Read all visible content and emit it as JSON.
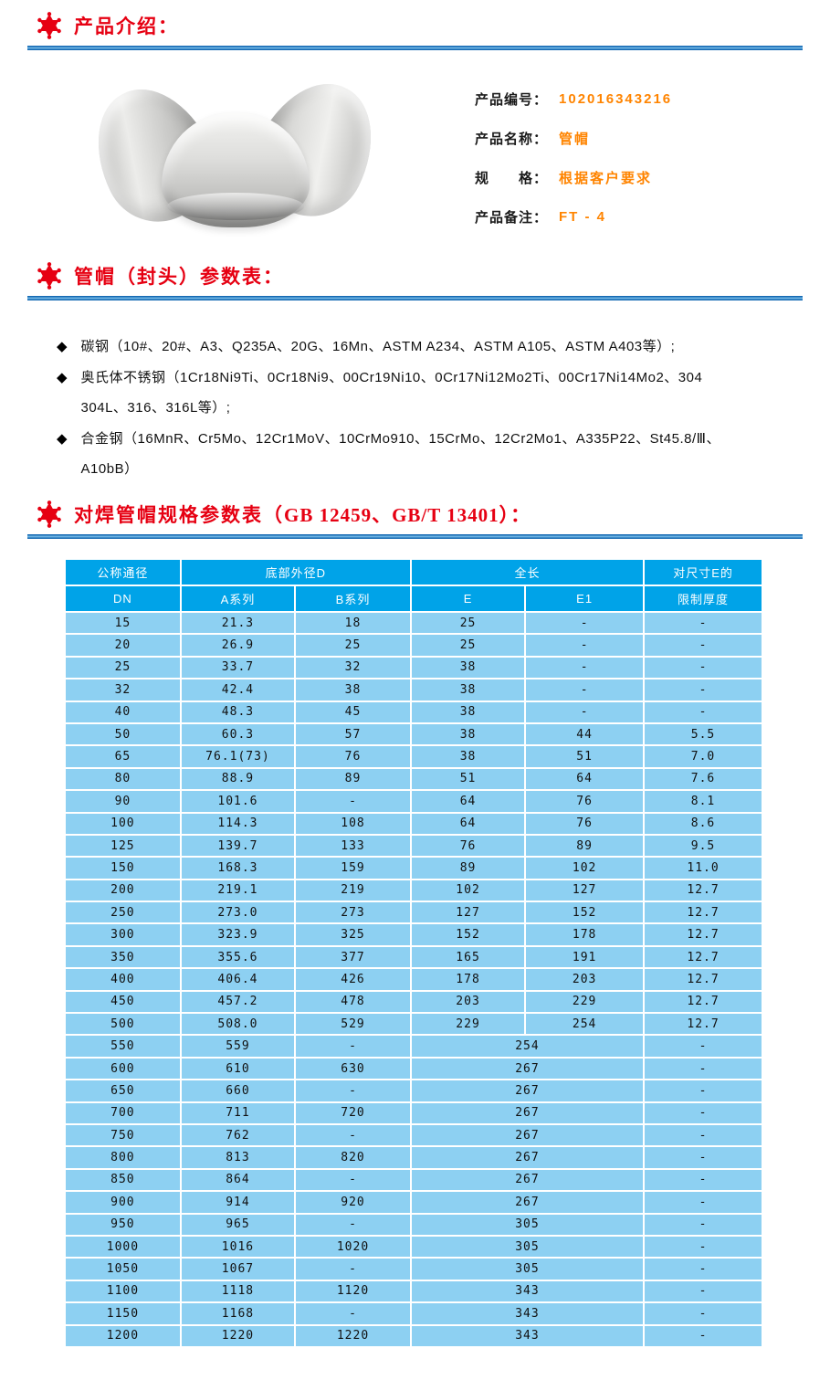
{
  "colors": {
    "accent_red": "#e60012",
    "value_orange": "#ff8400",
    "rule_blue": "#1569b3",
    "table_header_blue": "#00a3e8",
    "table_row_blue": "#8dd0f2"
  },
  "sections": {
    "intro_title": "产品介绍：",
    "params_title": "管帽（封头）参数表：",
    "spec_title_prefix": "对焊管帽规格参数表（",
    "spec_title_standards": "GB 12459、GB/T 13401",
    "spec_title_suffix": "）："
  },
  "product": {
    "image_name": "三个不锈钢管帽实物图",
    "fields": [
      {
        "label": "产品编号：",
        "value": "102016343216"
      },
      {
        "label": "产品名称：",
        "value": "管帽"
      },
      {
        "label": "规　　格：",
        "value": "根据客户要求"
      },
      {
        "label": "产品备注：",
        "value": "FT - 4"
      }
    ]
  },
  "materials": {
    "bullet_glyph": "◆",
    "items": [
      {
        "lines": [
          "碳钢（10#、20#、A3、Q235A、20G、16Mn、ASTM A234、ASTM A105、ASTM A403等）;"
        ]
      },
      {
        "lines": [
          "奥氏体不锈钢（1Cr18Ni9Ti、0Cr18Ni9、00Cr19Ni10、0Cr17Ni12Mo2Ti、00Cr17Ni14Mo2、304",
          "304L、316、316L等）;"
        ]
      },
      {
        "lines": [
          "合金钢（16MnR、Cr5Mo、12Cr1MoV、10CrMo910、15CrMo、12Cr2Mo1、A335P22、St45.8/Ⅲ、",
          "A10bB）"
        ]
      }
    ]
  },
  "spec_table": {
    "header": {
      "dn_top": "公称通径",
      "dn_bottom": "DN",
      "outer_diameter_group": "底部外径D",
      "series_a": "A系列",
      "series_b": "B系列",
      "length_group": "全长",
      "e": "E",
      "e1": "E1",
      "limit_top": "对尺寸E的",
      "limit_bottom": "限制厚度"
    },
    "rows": [
      {
        "dn": "15",
        "a": "21.3",
        "b": "18",
        "e": "25",
        "e1": "-",
        "t": "-"
      },
      {
        "dn": "20",
        "a": "26.9",
        "b": "25",
        "e": "25",
        "e1": "-",
        "t": "-"
      },
      {
        "dn": "25",
        "a": "33.7",
        "b": "32",
        "e": "38",
        "e1": "-",
        "t": "-"
      },
      {
        "dn": "32",
        "a": "42.4",
        "b": "38",
        "e": "38",
        "e1": "-",
        "t": "-"
      },
      {
        "dn": "40",
        "a": "48.3",
        "b": "45",
        "e": "38",
        "e1": "-",
        "t": "-"
      },
      {
        "dn": "50",
        "a": "60.3",
        "b": "57",
        "e": "38",
        "e1": "44",
        "t": "5.5"
      },
      {
        "dn": "65",
        "a": "76.1(73)",
        "b": "76",
        "e": "38",
        "e1": "51",
        "t": "7.0"
      },
      {
        "dn": "80",
        "a": "88.9",
        "b": "89",
        "e": "51",
        "e1": "64",
        "t": "7.6"
      },
      {
        "dn": "90",
        "a": "101.6",
        "b": "-",
        "e": "64",
        "e1": "76",
        "t": "8.1"
      },
      {
        "dn": "100",
        "a": "114.3",
        "b": "108",
        "e": "64",
        "e1": "76",
        "t": "8.6"
      },
      {
        "dn": "125",
        "a": "139.7",
        "b": "133",
        "e": "76",
        "e1": "89",
        "t": "9.5"
      },
      {
        "dn": "150",
        "a": "168.3",
        "b": "159",
        "e": "89",
        "e1": "102",
        "t": "11.0"
      },
      {
        "dn": "200",
        "a": "219.1",
        "b": "219",
        "e": "102",
        "e1": "127",
        "t": "12.7"
      },
      {
        "dn": "250",
        "a": "273.0",
        "b": "273",
        "e": "127",
        "e1": "152",
        "t": "12.7"
      },
      {
        "dn": "300",
        "a": "323.9",
        "b": "325",
        "e": "152",
        "e1": "178",
        "t": "12.7"
      },
      {
        "dn": "350",
        "a": "355.6",
        "b": "377",
        "e": "165",
        "e1": "191",
        "t": "12.7"
      },
      {
        "dn": "400",
        "a": "406.4",
        "b": "426",
        "e": "178",
        "e1": "203",
        "t": "12.7"
      },
      {
        "dn": "450",
        "a": "457.2",
        "b": "478",
        "e": "203",
        "e1": "229",
        "t": "12.7"
      },
      {
        "dn": "500",
        "a": "508.0",
        "b": "529",
        "e": "229",
        "e1": "254",
        "t": "12.7"
      },
      {
        "dn": "550",
        "a": "559",
        "b": "-",
        "e_merged": "254",
        "t": "-"
      },
      {
        "dn": "600",
        "a": "610",
        "b": "630",
        "e_merged": "267",
        "t": "-"
      },
      {
        "dn": "650",
        "a": "660",
        "b": "-",
        "e_merged": "267",
        "t": "-"
      },
      {
        "dn": "700",
        "a": "711",
        "b": "720",
        "e_merged": "267",
        "t": "-"
      },
      {
        "dn": "750",
        "a": "762",
        "b": "-",
        "e_merged": "267",
        "t": "-"
      },
      {
        "dn": "800",
        "a": "813",
        "b": "820",
        "e_merged": "267",
        "t": "-"
      },
      {
        "dn": "850",
        "a": "864",
        "b": "-",
        "e_merged": "267",
        "t": "-"
      },
      {
        "dn": "900",
        "a": "914",
        "b": "920",
        "e_merged": "267",
        "t": "-"
      },
      {
        "dn": "950",
        "a": "965",
        "b": "-",
        "e_merged": "305",
        "t": "-"
      },
      {
        "dn": "1000",
        "a": "1016",
        "b": "1020",
        "e_merged": "305",
        "t": "-"
      },
      {
        "dn": "1050",
        "a": "1067",
        "b": "-",
        "e_merged": "305",
        "t": "-"
      },
      {
        "dn": "1100",
        "a": "1118",
        "b": "1120",
        "e_merged": "343",
        "t": "-"
      },
      {
        "dn": "1150",
        "a": "1168",
        "b": "-",
        "e_merged": "343",
        "t": "-"
      },
      {
        "dn": "1200",
        "a": "1220",
        "b": "1220",
        "e_merged": "343",
        "t": "-"
      }
    ]
  }
}
